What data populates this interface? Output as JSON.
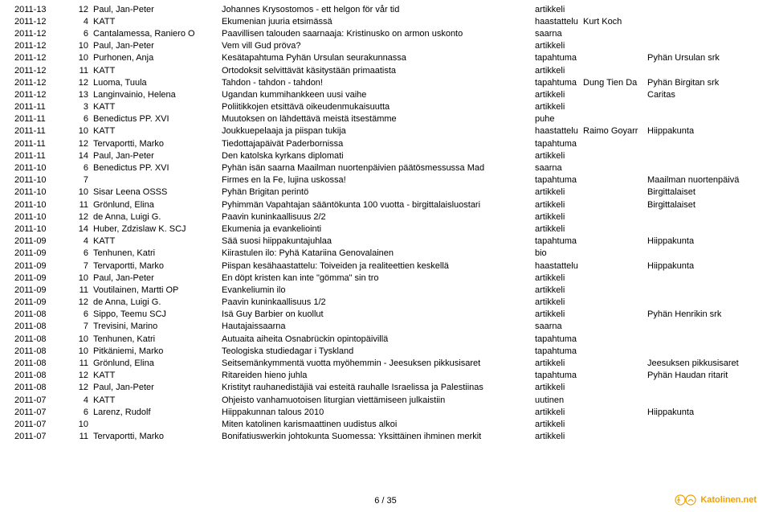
{
  "footer": {
    "page": "6 / 35",
    "brand": "Katolinen.net"
  },
  "columns": [
    "date",
    "num",
    "author",
    "title",
    "type",
    "extra1",
    "extra2"
  ],
  "rows": [
    {
      "date": "2011-13",
      "num": "12",
      "author": "Paul, Jan-Peter",
      "title": "Johannes Krysostomos - ett helgon för vår tid",
      "type": "artikkeli",
      "extra1": "",
      "extra2": ""
    },
    {
      "date": "2011-12",
      "num": "4",
      "author": "KATT",
      "title": "Ekumenian juuria etsimässä",
      "type": "haastattelu",
      "extra1": "Kurt Koch",
      "extra2": ""
    },
    {
      "date": "2011-12",
      "num": "6",
      "author": "Cantalamessa, Raniero O",
      "title": "Paavillisen talouden saarnaaja: Kristinusko on armon uskonto",
      "type": "saarna",
      "extra1": "",
      "extra2": ""
    },
    {
      "date": "2011-12",
      "num": "10",
      "author": "Paul, Jan-Peter",
      "title": "Vem vill Gud pröva?",
      "type": "artikkeli",
      "extra1": "",
      "extra2": ""
    },
    {
      "date": "2011-12",
      "num": "10",
      "author": "Purhonen, Anja",
      "title": "Kesätapahtuma Pyhän Ursulan seurakunnassa",
      "type": "tapahtuma",
      "extra1": "",
      "extra2": "Pyhän Ursulan srk"
    },
    {
      "date": "2011-12",
      "num": "11",
      "author": "KATT",
      "title": "Ortodoksit selvittävät käsitystään primaatista",
      "type": "artikkeli",
      "extra1": "",
      "extra2": ""
    },
    {
      "date": "2011-12",
      "num": "12",
      "author": "Luoma, Tuula",
      "title": "Tahdon - tahdon - tahdon!",
      "type": "tapahtuma",
      "extra1": "Dung Tien Da",
      "extra2": "Pyhän Birgitan srk"
    },
    {
      "date": "2011-12",
      "num": "13",
      "author": "Langinvainio, Helena",
      "title": "Ugandan kummihankkeen uusi vaihe",
      "type": "artikkeli",
      "extra1": "",
      "extra2": "Caritas"
    },
    {
      "date": "2011-11",
      "num": "3",
      "author": "KATT",
      "title": "Poliitikkojen etsittävä oikeudenmukaisuutta",
      "type": "artikkeli",
      "extra1": "",
      "extra2": ""
    },
    {
      "date": "2011-11",
      "num": "6",
      "author": "Benedictus PP. XVI",
      "title": "Muutoksen on lähdettävä meistä itsestämme",
      "type": "puhe",
      "extra1": "",
      "extra2": ""
    },
    {
      "date": "2011-11",
      "num": "10",
      "author": "KATT",
      "title": "Joukkuepelaaja ja piispan tukija",
      "type": "haastattelu",
      "extra1": "Raimo Goyarr",
      "extra2": "Hiippakunta"
    },
    {
      "date": "2011-11",
      "num": "12",
      "author": "Tervaportti, Marko",
      "title": "Tiedottajapäivät Paderbornissa",
      "type": "tapahtuma",
      "extra1": "",
      "extra2": ""
    },
    {
      "date": "2011-11",
      "num": "14",
      "author": "Paul, Jan-Peter",
      "title": "Den katolska kyrkans diplomati",
      "type": "artikkeli",
      "extra1": "",
      "extra2": ""
    },
    {
      "date": "2011-10",
      "num": "6",
      "author": "Benedictus PP. XVI",
      "title": "Pyhän isän saarna Maailman nuortenpäivien päätösmessussa Mad",
      "type": "saarna",
      "extra1": "",
      "extra2": ""
    },
    {
      "date": "2011-10",
      "num": "7",
      "author": "",
      "title": "Firmes en la Fe, lujina uskossa!",
      "type": "tapahtuma",
      "extra1": "",
      "extra2": "Maailman nuortenpäivä"
    },
    {
      "date": "2011-10",
      "num": "10",
      "author": "Sisar Leena OSSS",
      "title": "Pyhän Brigitan perintö",
      "type": "artikkeli",
      "extra1": "",
      "extra2": "Birgittalaiset"
    },
    {
      "date": "2011-10",
      "num": "11",
      "author": "Grönlund, Elina",
      "title": "Pyhimmän Vapahtajan sääntökunta 100 vuotta - birgittalaisluostari",
      "type": "artikkeli",
      "extra1": "",
      "extra2": "Birgittalaiset"
    },
    {
      "date": "2011-10",
      "num": "12",
      "author": "de Anna, Luigi G.",
      "title": "Paavin kuninkaallisuus 2/2",
      "type": "artikkeli",
      "extra1": "",
      "extra2": ""
    },
    {
      "date": "2011-10",
      "num": "14",
      "author": "Huber, Zdzislaw K. SCJ",
      "title": "Ekumenia ja evankeliointi",
      "type": "artikkeli",
      "extra1": "",
      "extra2": ""
    },
    {
      "date": "2011-09",
      "num": "4",
      "author": "KATT",
      "title": "Sää suosi hiippakuntajuhlaa",
      "type": "tapahtuma",
      "extra1": "",
      "extra2": "Hiippakunta"
    },
    {
      "date": "2011-09",
      "num": "6",
      "author": "Tenhunen, Katri",
      "title": "Kiirastulen ilo: Pyhä Katariina Genovalainen",
      "type": "bio",
      "extra1": "",
      "extra2": ""
    },
    {
      "date": "2011-09",
      "num": "7",
      "author": "Tervaportti, Marko",
      "title": "Piispan kesähaastattelu: Toiveiden ja realiteettien keskellä",
      "type": "haastattelu",
      "extra1": "",
      "extra2": "Hiippakunta"
    },
    {
      "date": "2011-09",
      "num": "10",
      "author": "Paul, Jan-Peter",
      "title": "En döpt kristen kan inte \"gömma\" sin tro",
      "type": "artikkeli",
      "extra1": "",
      "extra2": ""
    },
    {
      "date": "2011-09",
      "num": "11",
      "author": "Voutilainen, Martti OP",
      "title": "Evankeliumin ilo",
      "type": "artikkeli",
      "extra1": "",
      "extra2": ""
    },
    {
      "date": "2011-09",
      "num": "12",
      "author": "de Anna, Luigi G.",
      "title": "Paavin kuninkaallisuus 1/2",
      "type": "artikkeli",
      "extra1": "",
      "extra2": ""
    },
    {
      "date": "2011-08",
      "num": "6",
      "author": "Sippo, Teemu SCJ",
      "title": "Isä Guy Barbier on kuollut",
      "type": "artikkeli",
      "extra1": "",
      "extra2": "Pyhän Henrikin srk"
    },
    {
      "date": "2011-08",
      "num": "7",
      "author": "Trevisini, Marino",
      "title": "Hautajaissaarna",
      "type": "saarna",
      "extra1": "",
      "extra2": ""
    },
    {
      "date": "2011-08",
      "num": "10",
      "author": "Tenhunen, Katri",
      "title": "Autuaita aiheita Osnabrückin opintopäivillä",
      "type": "tapahtuma",
      "extra1": "",
      "extra2": ""
    },
    {
      "date": "2011-08",
      "num": "10",
      "author": "Pitkäniemi, Marko",
      "title": "Teologiska studiedagar i Tyskland",
      "type": "tapahtuma",
      "extra1": "",
      "extra2": ""
    },
    {
      "date": "2011-08",
      "num": "11",
      "author": "Grönlund, Elina",
      "title": "Seitsemänkymmentä vuotta myöhemmin - Jeesuksen pikkusisaret",
      "type": "artikkeli",
      "extra1": "",
      "extra2": "Jeesuksen pikkusisaret"
    },
    {
      "date": "2011-08",
      "num": "12",
      "author": "KATT",
      "title": "Ritareiden hieno juhla",
      "type": "tapahtuma",
      "extra1": "",
      "extra2": "Pyhän Haudan ritarit"
    },
    {
      "date": "2011-08",
      "num": "12",
      "author": "Paul, Jan-Peter",
      "title": "Kristityt rauhanedistäjiä vai esteitä rauhalle Israelissa ja Palestiinas",
      "type": "artikkeli",
      "extra1": "",
      "extra2": ""
    },
    {
      "date": "2011-07",
      "num": "4",
      "author": "KATT",
      "title": "Ohjeisto vanhamuotoisen liturgian viettämiseen julkaistiin",
      "type": "uutinen",
      "extra1": "",
      "extra2": ""
    },
    {
      "date": "2011-07",
      "num": "6",
      "author": "Larenz, Rudolf",
      "title": "Hiippakunnan talous 2010",
      "type": "artikkeli",
      "extra1": "",
      "extra2": "Hiippakunta"
    },
    {
      "date": "2011-07",
      "num": "10",
      "author": "",
      "title": "Miten katolinen karismaattinen uudistus alkoi",
      "type": "artikkeli",
      "extra1": "",
      "extra2": ""
    },
    {
      "date": "2011-07",
      "num": "11",
      "author": "Tervaportti, Marko",
      "title": "Bonifatiuswerkin johtokunta Suomessa: Yksittäinen ihminen merkit",
      "type": "artikkeli",
      "extra1": "",
      "extra2": ""
    }
  ]
}
